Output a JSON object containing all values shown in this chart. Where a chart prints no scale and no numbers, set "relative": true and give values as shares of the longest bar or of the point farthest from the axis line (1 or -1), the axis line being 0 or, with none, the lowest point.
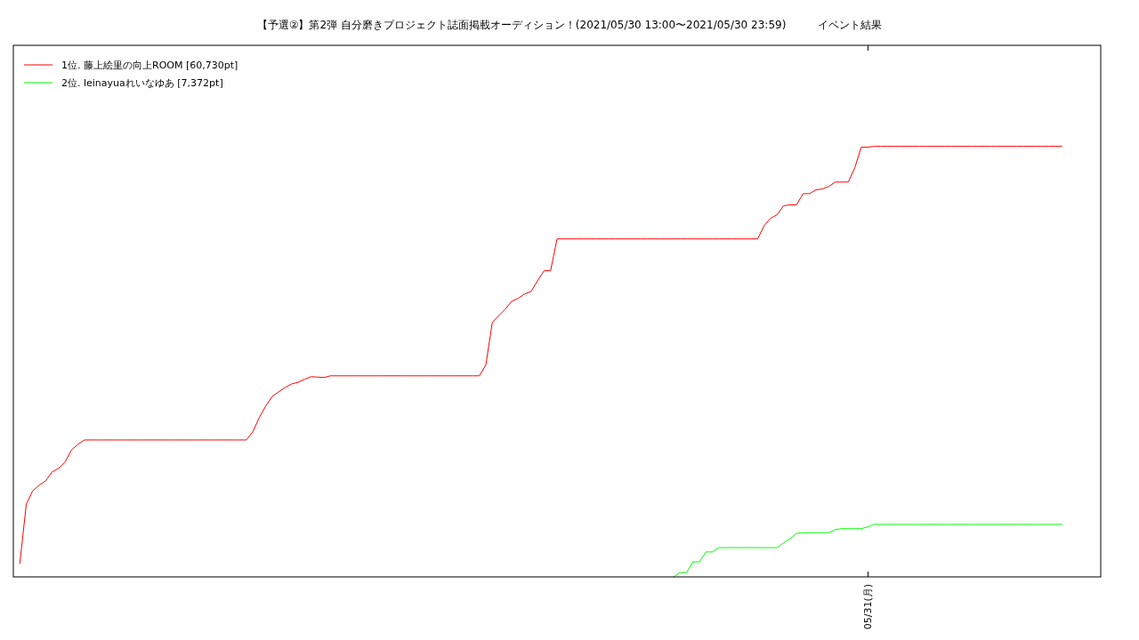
{
  "chart_data": {
    "type": "line",
    "title": "【予選②】第2弾 自分磨きプロジェクト誌面掲載オーディション！(2021/05/30 13:00〜2021/05/30 23:59)　　　イベント結果",
    "relative": true,
    "legend": "top left",
    "marker": "none",
    "line_style": "solid",
    "annotations": [
      "05/31(月)"
    ],
    "categories": [
      null,
      null,
      null,
      null,
      null,
      null,
      null,
      null,
      null,
      null,
      null,
      null,
      null,
      null,
      null,
      null,
      null,
      null,
      null,
      null,
      null,
      null,
      null,
      null,
      null,
      null,
      null,
      null,
      null,
      null,
      null,
      null,
      null,
      null,
      null,
      null,
      null,
      null,
      null,
      null,
      null,
      null,
      null,
      null,
      null,
      null,
      null,
      null,
      null,
      null,
      null,
      null,
      null,
      null,
      null,
      null,
      null,
      null,
      null,
      null,
      null,
      null,
      null,
      null,
      null,
      null,
      null,
      null,
      null,
      null,
      null,
      null,
      null,
      null,
      null,
      null,
      null,
      null,
      null,
      null,
      null,
      null,
      null,
      null,
      null,
      null,
      null,
      null,
      null,
      null,
      null,
      null,
      null,
      null,
      null,
      null,
      null,
      null,
      null,
      null,
      null,
      null,
      null,
      null,
      null,
      null,
      null,
      null,
      null,
      null,
      null,
      null,
      null,
      null,
      null,
      null,
      null,
      null,
      null,
      null,
      null,
      null,
      null,
      null,
      null,
      null,
      null,
      null,
      null,
      null,
      null,
      null,
      null,
      null,
      null,
      null,
      null,
      null,
      null,
      null,
      null,
      null,
      null,
      null,
      null,
      null,
      null,
      null,
      null,
      null,
      null,
      null,
      null,
      null,
      null,
      null,
      null,
      null,
      null,
      null,
      null,
      null,
      null,
      null,
      null,
      null,
      null,
      null,
      null
    ],
    "series": [
      {
        "name": "1位. 藤上絵里の向上ROOM [60,730pt]",
        "color": "#ff0000",
        "values": [
          null,
          0.031,
          0.169,
          0.2,
          0.213,
          0.223,
          0.244,
          0.252,
          0.267,
          0.295,
          0.308,
          0.318,
          0.318,
          0.318,
          0.318,
          0.318,
          0.318,
          0.318,
          0.318,
          0.318,
          0.318,
          0.318,
          0.318,
          0.318,
          0.318,
          0.318,
          0.318,
          0.318,
          0.318,
          0.318,
          0.318,
          0.318,
          0.318,
          0.318,
          0.318,
          0.318,
          0.318,
          0.337,
          0.37,
          0.397,
          0.419,
          0.43,
          0.44,
          0.448,
          0.452,
          0.459,
          0.465,
          0.464,
          0.463,
          0.467,
          0.467,
          0.467,
          0.467,
          0.467,
          0.467,
          0.467,
          0.467,
          0.467,
          0.467,
          0.467,
          0.467,
          0.467,
          0.467,
          0.467,
          0.467,
          0.467,
          0.467,
          0.467,
          0.467,
          0.467,
          0.467,
          0.467,
          0.467,
          0.492,
          0.591,
          0.607,
          0.622,
          0.64,
          0.647,
          0.657,
          0.663,
          0.688,
          0.711,
          0.711,
          0.785,
          0.785,
          0.785,
          0.785,
          0.785,
          0.785,
          0.785,
          0.785,
          0.785,
          0.785,
          0.785,
          0.785,
          0.785,
          0.785,
          0.785,
          0.785,
          0.785,
          0.785,
          0.785,
          0.785,
          0.785,
          0.785,
          0.785,
          0.785,
          0.785,
          0.785,
          0.785,
          0.785,
          0.785,
          0.785,
          0.785,
          0.785,
          0.816,
          0.833,
          0.841,
          0.862,
          0.864,
          0.864,
          0.89,
          0.89,
          0.899,
          0.901,
          0.907,
          0.917,
          0.917,
          0.917,
          0.95,
          0.998,
          0.998,
          1,
          1,
          1,
          1,
          1,
          1,
          1,
          1,
          1,
          1,
          1,
          1,
          1,
          1,
          1,
          1,
          1,
          1,
          1,
          1,
          1,
          1,
          1,
          1,
          1,
          1,
          1,
          1,
          1,
          1,
          null,
          null,
          null,
          null,
          null,
          null
        ]
      },
      {
        "name": "2位. leinayuaれいなゆあ [7,372pt]",
        "color": "#00ff00",
        "values": [
          null,
          null,
          null,
          null,
          null,
          null,
          null,
          null,
          null,
          null,
          null,
          null,
          null,
          null,
          null,
          null,
          null,
          null,
          null,
          null,
          null,
          null,
          null,
          null,
          null,
          null,
          null,
          null,
          null,
          null,
          null,
          null,
          null,
          null,
          null,
          null,
          null,
          null,
          null,
          null,
          null,
          null,
          null,
          null,
          null,
          null,
          null,
          null,
          null,
          null,
          null,
          null,
          null,
          null,
          null,
          null,
          null,
          null,
          null,
          null,
          null,
          null,
          null,
          null,
          null,
          null,
          null,
          null,
          null,
          null,
          null,
          null,
          null,
          null,
          null,
          null,
          null,
          null,
          null,
          null,
          null,
          null,
          null,
          null,
          null,
          null,
          null,
          null,
          null,
          null,
          null,
          null,
          null,
          null,
          null,
          null,
          null,
          null,
          null,
          null,
          null,
          null,
          0,
          0.01,
          0.01,
          0.035,
          0.035,
          0.058,
          0.058,
          0.068,
          0.068,
          0.068,
          0.068,
          0.068,
          0.068,
          0.068,
          0.068,
          0.068,
          0.068,
          0.079,
          0.089,
          0.101,
          0.102,
          0.103,
          0.103,
          0.103,
          0.103,
          0.11,
          0.112,
          0.112,
          0.112,
          0.112,
          0.116,
          0.122,
          0.122,
          0.122,
          0.122,
          0.122,
          0.122,
          0.122,
          0.122,
          0.122,
          0.122,
          0.122,
          0.122,
          0.122,
          0.122,
          0.122,
          0.122,
          0.122,
          0.122,
          0.122,
          0.122,
          0.122,
          0.122,
          0.122,
          0.122,
          0.122,
          0.122,
          0.122,
          0.122,
          0.122,
          0.122,
          null,
          null,
          null,
          null,
          null,
          null
        ]
      }
    ]
  }
}
